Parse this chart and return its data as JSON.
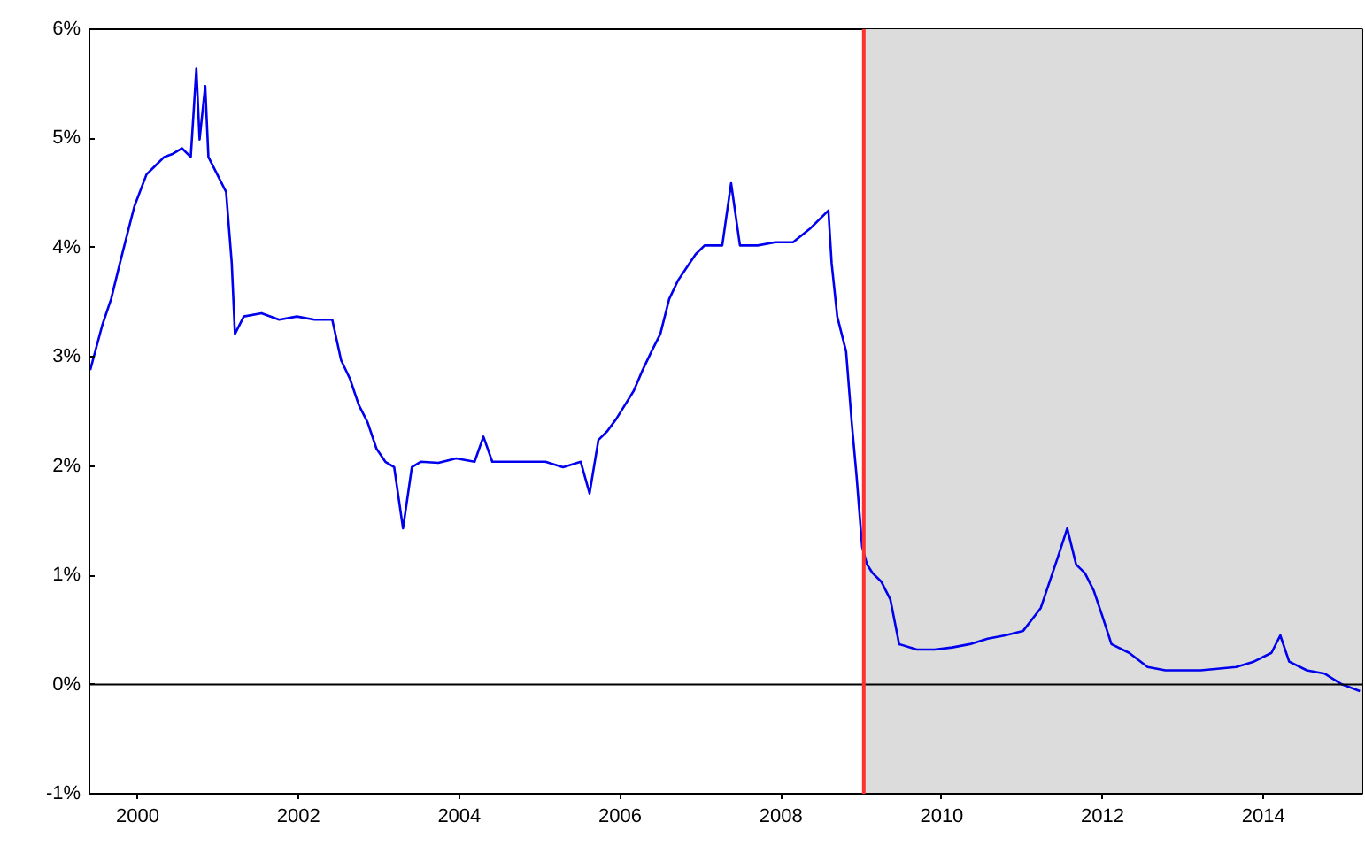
{
  "chart_data": {
    "type": "line",
    "grid": false,
    "xlim": [
      1999.4,
      2015.23
    ],
    "ylim": [
      -1,
      6
    ],
    "xticks": [
      {
        "value": 2000,
        "label": "2000"
      },
      {
        "value": 2002,
        "label": "2002"
      },
      {
        "value": 2004,
        "label": "2004"
      },
      {
        "value": 2006,
        "label": "2006"
      },
      {
        "value": 2008,
        "label": "2008"
      },
      {
        "value": 2010,
        "label": "2010"
      },
      {
        "value": 2012,
        "label": "2012"
      },
      {
        "value": 2014,
        "label": "2014"
      }
    ],
    "yticks": [
      {
        "value": -1,
        "label": "-1%"
      },
      {
        "value": 0,
        "label": "0%"
      },
      {
        "value": 1,
        "label": "1%"
      },
      {
        "value": 2,
        "label": "2%"
      },
      {
        "value": 3,
        "label": "3%"
      },
      {
        "value": 4,
        "label": "4%"
      },
      {
        "value": 5,
        "label": "5%"
      },
      {
        "value": 6,
        "label": "6%"
      }
    ],
    "ref_lines": [
      {
        "axis": "y",
        "value": 0,
        "color": "#000000"
      },
      {
        "axis": "x",
        "value": 2009.03,
        "color": "#ff3030"
      }
    ],
    "bands": [
      {
        "axis": "x",
        "from": 2009.03,
        "to": 2015.23,
        "color": "#dcdcdc"
      }
    ],
    "series": [
      {
        "color": "#0000ee",
        "x": [
          1999.41,
          1999.56,
          1999.67,
          1999.78,
          1999.89,
          1999.96,
          2000.11,
          2000.22,
          2000.33,
          2000.44,
          2000.55,
          2000.66,
          2000.73,
          2000.77,
          2000.84,
          2000.88,
          2000.99,
          2001.1,
          2001.17,
          2001.21,
          2001.32,
          2001.54,
          2001.76,
          2001.98,
          2002.2,
          2002.42,
          2002.53,
          2002.64,
          2002.75,
          2002.86,
          2002.97,
          2003.08,
          2003.19,
          2003.3,
          2003.41,
          2003.52,
          2003.74,
          2003.96,
          2004.19,
          2004.3,
          2004.41,
          2004.63,
          2004.85,
          2005.07,
          2005.29,
          2005.51,
          2005.62,
          2005.73,
          2005.84,
          2005.95,
          2006.06,
          2006.17,
          2006.28,
          2006.39,
          2006.5,
          2006.61,
          2006.72,
          2006.83,
          2006.94,
          2007.05,
          2007.27,
          2007.38,
          2007.49,
          2007.71,
          2007.93,
          2008.15,
          2008.37,
          2008.59,
          2008.63,
          2008.7,
          2008.81,
          2008.88,
          2008.94,
          2009.01,
          2009.07,
          2009.14,
          2009.25,
          2009.36,
          2009.47,
          2009.69,
          2009.91,
          2010.13,
          2010.35,
          2010.57,
          2010.79,
          2011.01,
          2011.23,
          2011.34,
          2011.45,
          2011.56,
          2011.67,
          2011.78,
          2011.89,
          2012.0,
          2012.11,
          2012.33,
          2012.56,
          2012.78,
          2013.22,
          2013.66,
          2013.88,
          2014.1,
          2014.21,
          2014.32,
          2014.54,
          2014.76,
          2014.98,
          2015.2
        ],
        "values": [
          2.88,
          3.29,
          3.53,
          3.86,
          4.18,
          4.38,
          4.67,
          4.75,
          4.83,
          4.86,
          4.91,
          4.83,
          5.64,
          4.99,
          5.48,
          4.83,
          4.67,
          4.51,
          3.86,
          3.21,
          3.37,
          3.4,
          3.34,
          3.37,
          3.34,
          3.34,
          2.97,
          2.8,
          2.56,
          2.4,
          2.16,
          2.04,
          1.99,
          1.43,
          1.99,
          2.04,
          2.03,
          2.07,
          2.04,
          2.27,
          2.04,
          2.04,
          2.04,
          2.04,
          1.99,
          2.04,
          1.75,
          2.24,
          2.32,
          2.43,
          2.56,
          2.69,
          2.88,
          3.05,
          3.21,
          3.53,
          3.7,
          3.82,
          3.94,
          4.02,
          4.02,
          4.59,
          4.02,
          4.02,
          4.05,
          4.05,
          4.18,
          4.34,
          3.86,
          3.37,
          3.05,
          2.4,
          1.91,
          1.26,
          1.1,
          1.02,
          0.94,
          0.78,
          0.37,
          0.32,
          0.32,
          0.34,
          0.37,
          0.42,
          0.45,
          0.49,
          0.7,
          0.94,
          1.18,
          1.43,
          1.1,
          1.02,
          0.86,
          0.62,
          0.37,
          0.29,
          0.16,
          0.13,
          0.13,
          0.16,
          0.21,
          0.29,
          0.45,
          0.21,
          0.13,
          0.1,
          0.0,
          -0.06
        ]
      }
    ]
  }
}
